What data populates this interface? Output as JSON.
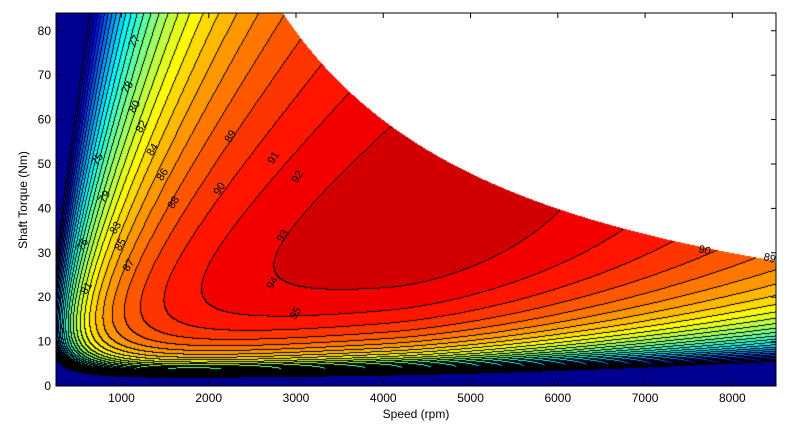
{
  "chart_data": {
    "type": "heatmap",
    "subtype": "filled-contour",
    "title": "",
    "xlabel": "Speed  (rpm)",
    "ylabel": "Shaft Torque  (Nm)",
    "xlim": [
      250,
      8500
    ],
    "ylim": [
      0,
      84
    ],
    "xticks": [
      1000,
      2000,
      3000,
      4000,
      5000,
      6000,
      7000,
      8000
    ],
    "yticks": [
      0,
      10,
      20,
      30,
      40,
      50,
      60,
      70,
      80
    ],
    "colormap": "jet",
    "contour_levels": {
      "min": 66,
      "max": 95,
      "step": 1
    },
    "color_range": [
      65,
      96
    ],
    "peak_efficiency": 95,
    "peak_region": {
      "speed": [
        3500,
        5500
      ],
      "torque": [
        8,
        25
      ]
    },
    "torque_envelope": {
      "max_torque": 84,
      "corner_speed": 2850
    },
    "grid": false,
    "legend": "none",
    "contour_labels": [
      {
        "value": "77",
        "speed": 1143,
        "torque": 77.7
      },
      {
        "value": "78",
        "speed": 1063,
        "torque": 67.3
      },
      {
        "value": "80",
        "speed": 1143,
        "torque": 63.0
      },
      {
        "value": "82",
        "speed": 1224,
        "torque": 58.5
      },
      {
        "value": "84",
        "speed": 1350,
        "torque": 53.3
      },
      {
        "value": "86",
        "speed": 1464,
        "torque": 47.7
      },
      {
        "value": "88",
        "speed": 1590,
        "torque": 41.4
      },
      {
        "value": "89",
        "speed": 2243,
        "torque": 56.3
      },
      {
        "value": "90",
        "speed": 2117,
        "torque": 44.5
      },
      {
        "value": "91",
        "speed": 2736,
        "torque": 51.5
      },
      {
        "value": "92",
        "speed": 3011,
        "torque": 47.2
      },
      {
        "value": "93",
        "speed": 2839,
        "torque": 33.9
      },
      {
        "value": "94",
        "speed": 2724,
        "torque": 23.3
      },
      {
        "value": "95",
        "speed": 2988,
        "torque": 16.5
      },
      {
        "value": "87",
        "speed": 1075,
        "torque": 27.3
      },
      {
        "value": "85",
        "speed": 983,
        "torque": 31.9
      },
      {
        "value": "83",
        "speed": 926,
        "torque": 35.7
      },
      {
        "value": "79",
        "speed": 800,
        "torque": 42.7
      },
      {
        "value": "75",
        "speed": 720,
        "torque": 51.1
      },
      {
        "value": "81",
        "speed": 594,
        "torque": 22.1
      },
      {
        "value": "76",
        "speed": 548,
        "torque": 31.9
      },
      {
        "value": "90",
        "speed": 7684,
        "torque": 30.7
      },
      {
        "value": "89",
        "speed": 8429,
        "torque": 28.9
      }
    ]
  }
}
